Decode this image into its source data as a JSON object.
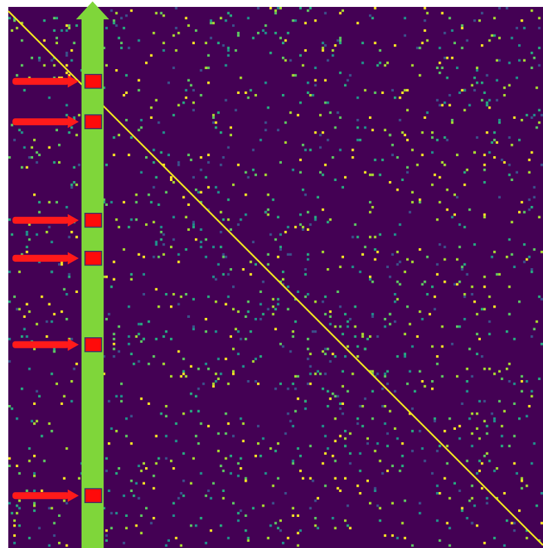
{
  "figure": {
    "description_free": true,
    "colors": {
      "background": "#ffffff",
      "matrix_base": "#440154",
      "diagonal": "#f2e51f",
      "noise_palette": [
        "#3b528b",
        "#21918c",
        "#27ad81",
        "#5ec962",
        "#aadc32",
        "#fde725"
      ],
      "column_bar": "#7fd63a",
      "marker_fill": "#ff0a0a",
      "marker_border": "#3a2d6b",
      "arrow": "#ff1a1a"
    },
    "matrix": {
      "noise_density": 0.035,
      "seed": 7
    },
    "markers": {
      "count": 6,
      "row_fractions": [
        0.1376,
        0.2122,
        0.3942,
        0.4645,
        0.6243,
        0.9032
      ]
    }
  }
}
